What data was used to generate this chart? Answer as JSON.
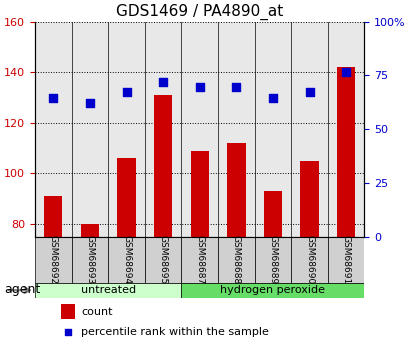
{
  "title": "GDS1469 / PA4890_at",
  "samples": [
    "GSM68692",
    "GSM68693",
    "GSM68694",
    "GSM68695",
    "GSM68687",
    "GSM68688",
    "GSM68689",
    "GSM68690",
    "GSM68691"
  ],
  "counts": [
    91,
    80,
    106,
    131,
    109,
    112,
    93,
    105,
    142
  ],
  "percentiles": [
    130,
    128,
    132,
    136,
    134,
    134,
    130,
    132,
    140
  ],
  "ylim_left": [
    75,
    160
  ],
  "ylim_right": [
    0,
    100
  ],
  "yticks_left": [
    80,
    100,
    120,
    140,
    160
  ],
  "yticks_right": [
    0,
    25,
    50,
    75,
    100
  ],
  "groups": [
    {
      "label": "untreated",
      "indices": [
        0,
        1,
        2,
        3
      ],
      "color": "#ccffcc"
    },
    {
      "label": "hydrogen peroxide",
      "indices": [
        4,
        5,
        6,
        7,
        8
      ],
      "color": "#66dd66"
    }
  ],
  "bar_color": "#cc0000",
  "dot_color": "#0000cc",
  "bar_width": 0.5,
  "grid_color": "#000000",
  "grid_style": "dotted",
  "background_color": "#ffffff",
  "plot_bg_color": "#e8e8e8",
  "agent_label": "agent",
  "legend_count_label": "count",
  "legend_percentile_label": "percentile rank within the sample"
}
